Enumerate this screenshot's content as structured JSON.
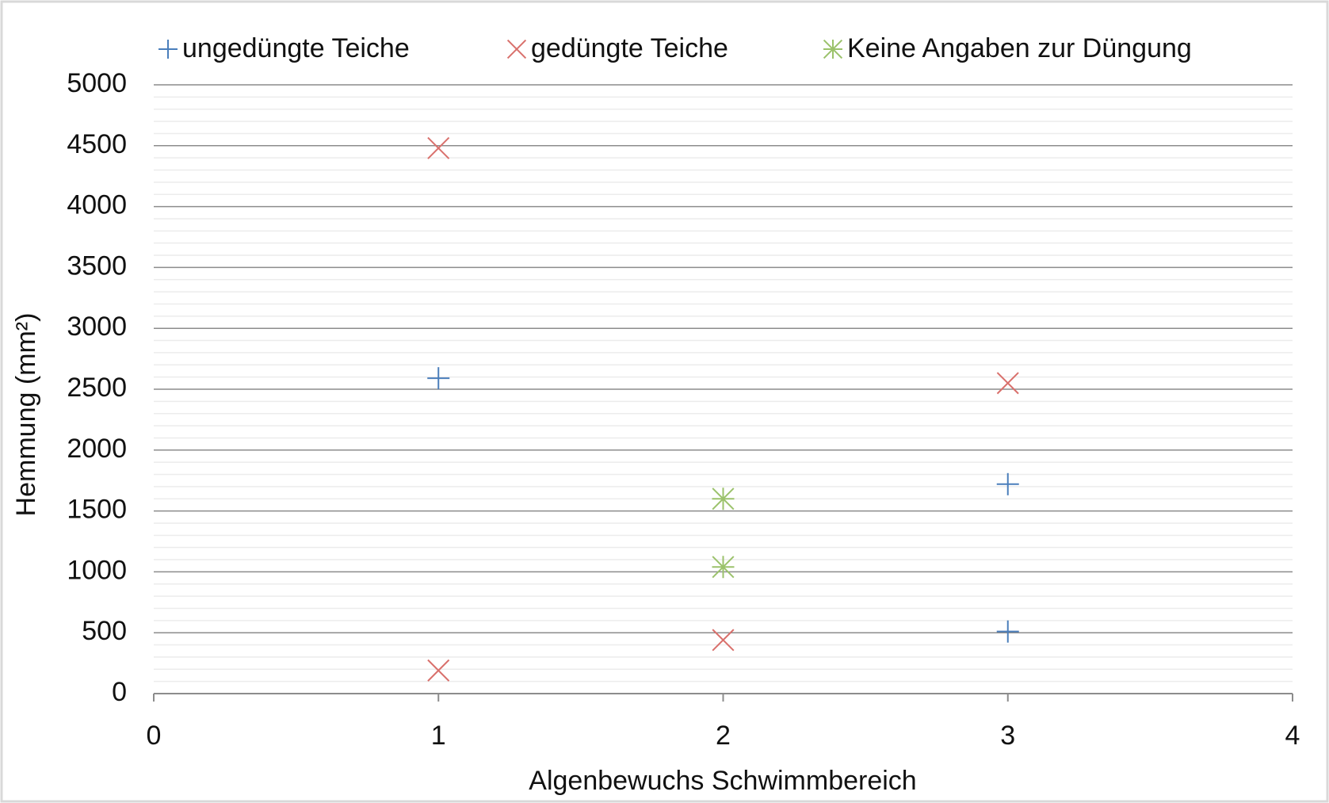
{
  "chart_data": {
    "type": "scatter",
    "xlabel": "Algenbewuchs  Schwimmbereich",
    "ylabel": "Hemmung (mm²)",
    "xlim": [
      0,
      4
    ],
    "xticks": [
      0,
      1,
      2,
      3,
      4
    ],
    "ylim": [
      0,
      5000
    ],
    "yticks": [
      0,
      500,
      1000,
      1500,
      2000,
      2500,
      3000,
      3500,
      4000,
      4500,
      5000
    ],
    "grid": true,
    "minor_grid": true,
    "legend": "top",
    "series": [
      {
        "name": "ungedüngte Teiche",
        "color": "#4a7ebb",
        "marker": "plus",
        "x": [
          1,
          3,
          3
        ],
        "values": [
          2590,
          1720,
          510
        ]
      },
      {
        "name": "gedüngte Teiche",
        "color": "#d9706c",
        "marker": "x",
        "x": [
          1,
          1,
          2,
          3
        ],
        "values": [
          4480,
          190,
          440,
          2550
        ]
      },
      {
        "name": "Keine Angaben zur Düngung",
        "color": "#9bc26b",
        "marker": "star",
        "x": [
          2,
          2
        ],
        "values": [
          1600,
          1040
        ]
      }
    ]
  }
}
